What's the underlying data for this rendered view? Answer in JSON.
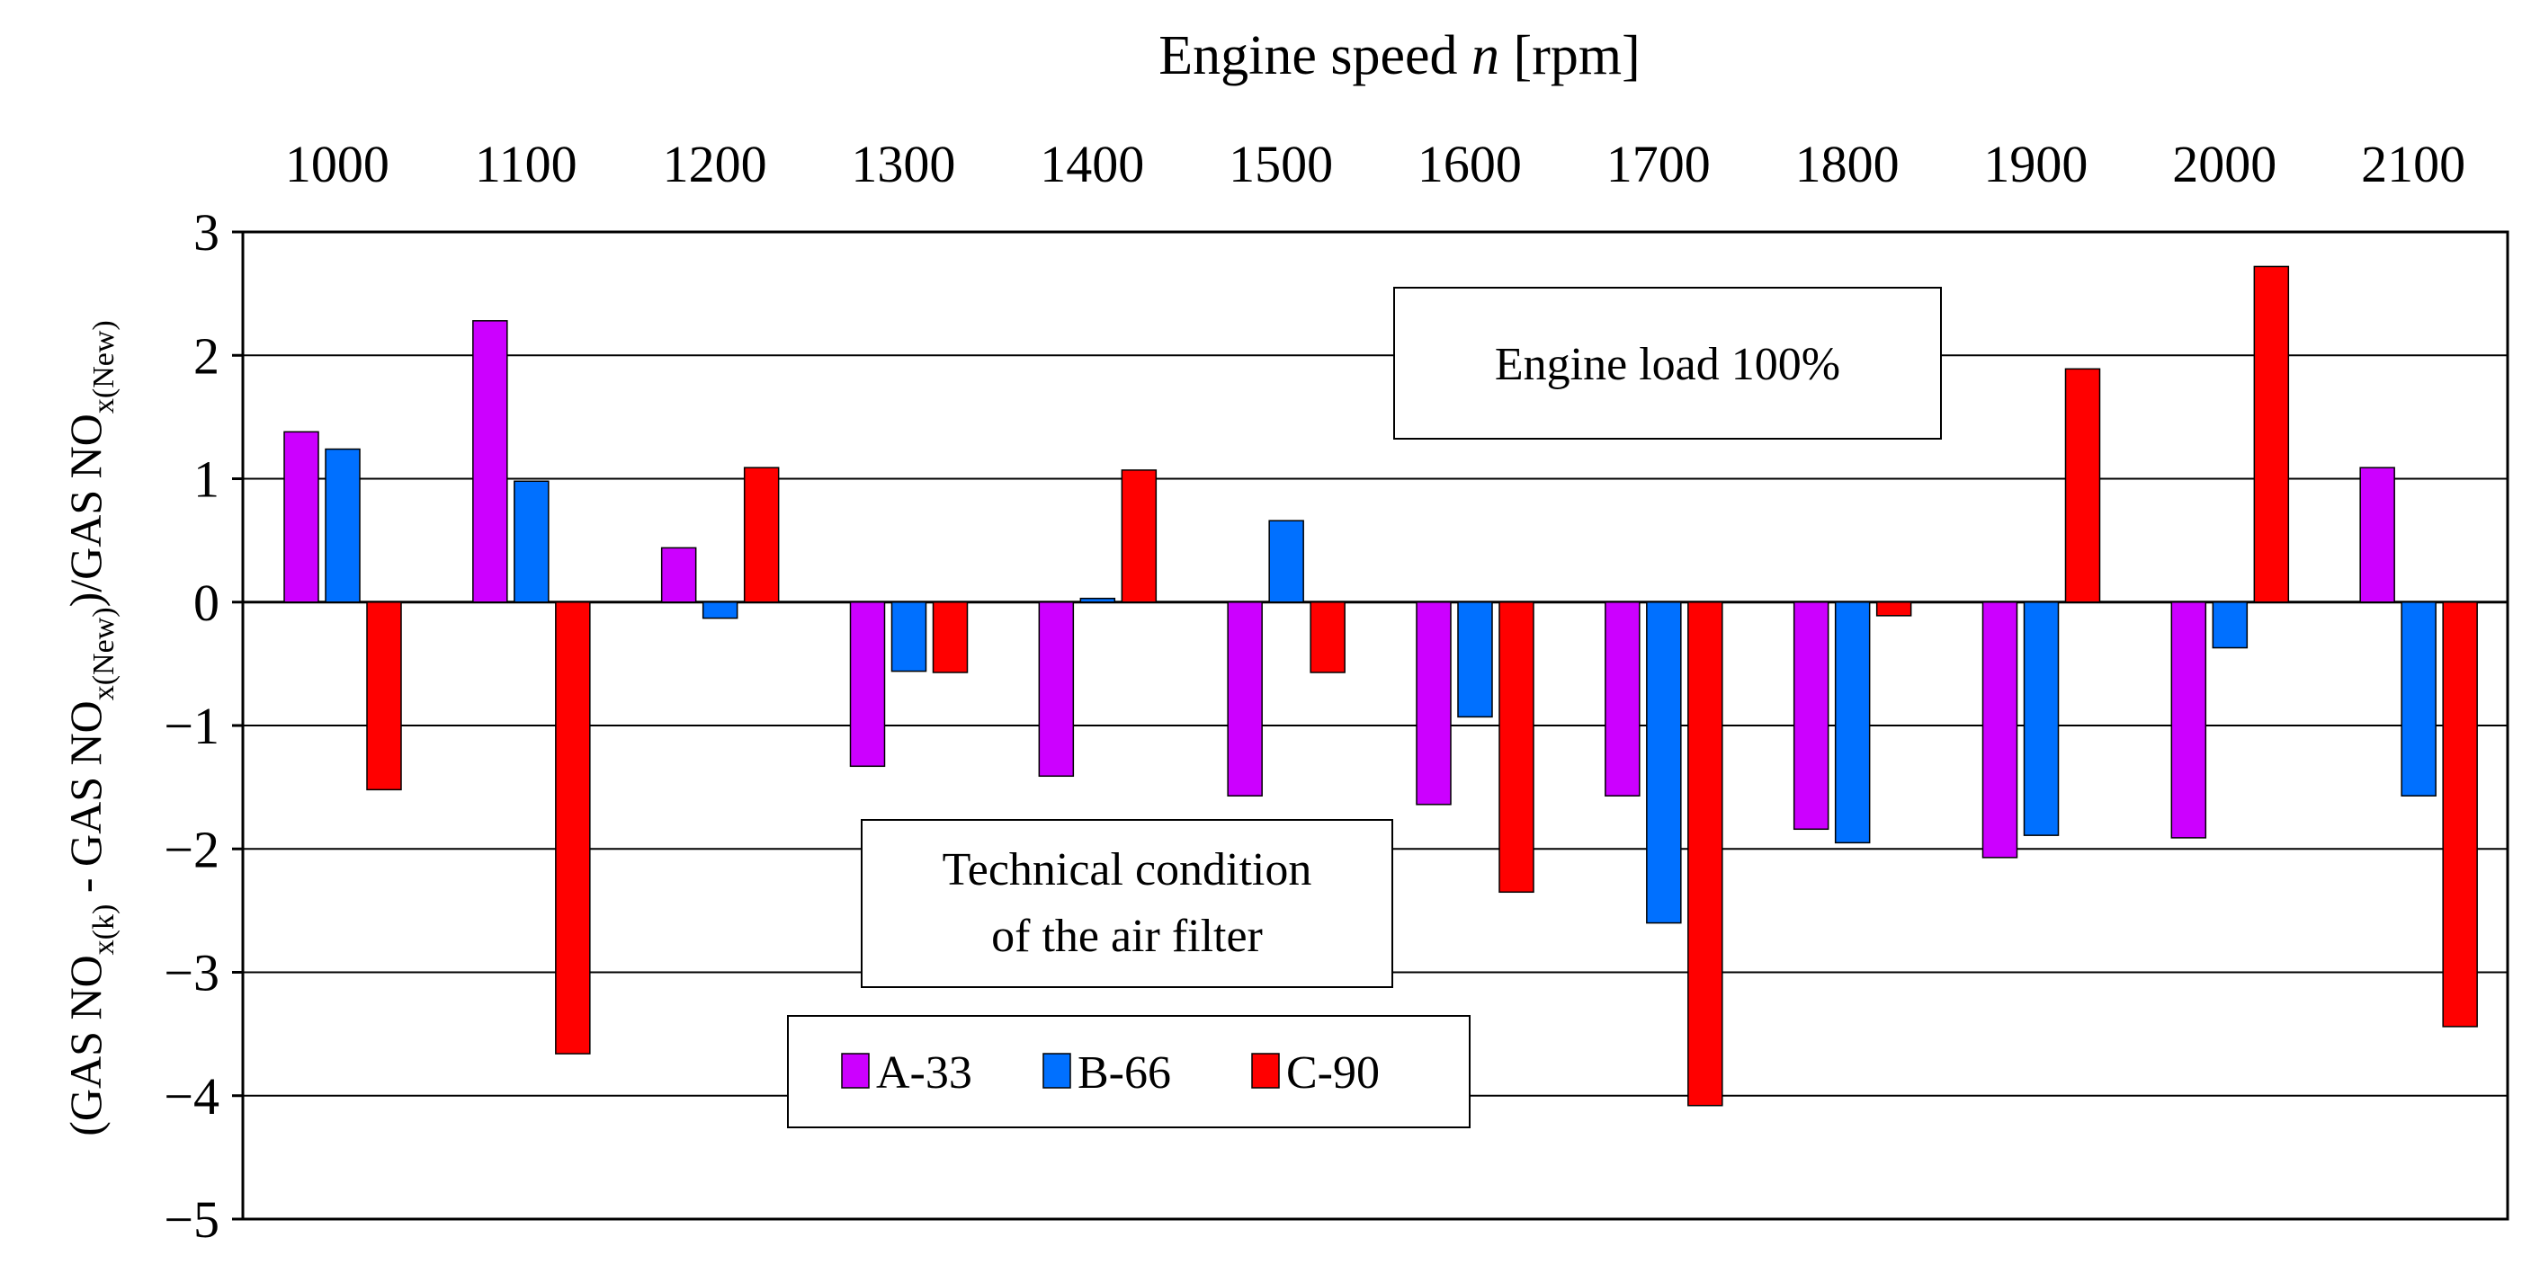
{
  "chart_data": {
    "type": "bar",
    "title": "Engine speed n [rpm]",
    "title_prefix": "Engine speed ",
    "title_variable": "n",
    "title_unit": " [rpm]",
    "xlabel": "Engine speed n [rpm]",
    "ylabel": "(GAS NOx(k) - GAS NOx(New))/GAS NOx(New)",
    "ylabel_parts": {
      "p1": "(GAS NO",
      "s1": "x(k)",
      "p2": " - GAS NO",
      "s2": "x(New)",
      "p3": ")/GAS NO",
      "s3": "x(New)"
    },
    "categories": [
      "1000",
      "1100",
      "1200",
      "1300",
      "1400",
      "1500",
      "1600",
      "1700",
      "1800",
      "1900",
      "2000",
      "2100"
    ],
    "series": [
      {
        "name": "A-33",
        "color": "#cc00ff",
        "values": [
          1.38,
          2.28,
          0.44,
          -1.33,
          -1.41,
          -1.57,
          -1.64,
          -1.57,
          -1.84,
          -2.07,
          -1.91,
          1.09
        ]
      },
      {
        "name": "B-66",
        "color": "#0070ff",
        "values": [
          1.24,
          0.98,
          -0.13,
          -0.56,
          0.03,
          0.66,
          -0.93,
          -2.6,
          -1.95,
          -1.89,
          -0.37,
          -1.57
        ]
      },
      {
        "name": "C-90",
        "color": "#ff0000",
        "values": [
          -1.52,
          -3.66,
          1.09,
          -0.57,
          1.07,
          -0.57,
          -2.35,
          -4.08,
          -0.11,
          1.89,
          2.72,
          -3.44
        ]
      }
    ],
    "ylim": [
      -5,
      3
    ],
    "yticks": [
      3,
      2,
      1,
      0,
      -1,
      -2,
      -3,
      -4,
      -5
    ],
    "ytick_labels": [
      "3",
      "2",
      "1",
      "0",
      "−1",
      "−2",
      "−3",
      "−4",
      "−5"
    ],
    "grid": true,
    "x_axis_position": "top",
    "legend_position": "bottom-center",
    "annotations": {
      "load": "Engine load 100%",
      "condition_line1": "Technical condition",
      "condition_line2": "of the air filter"
    }
  }
}
